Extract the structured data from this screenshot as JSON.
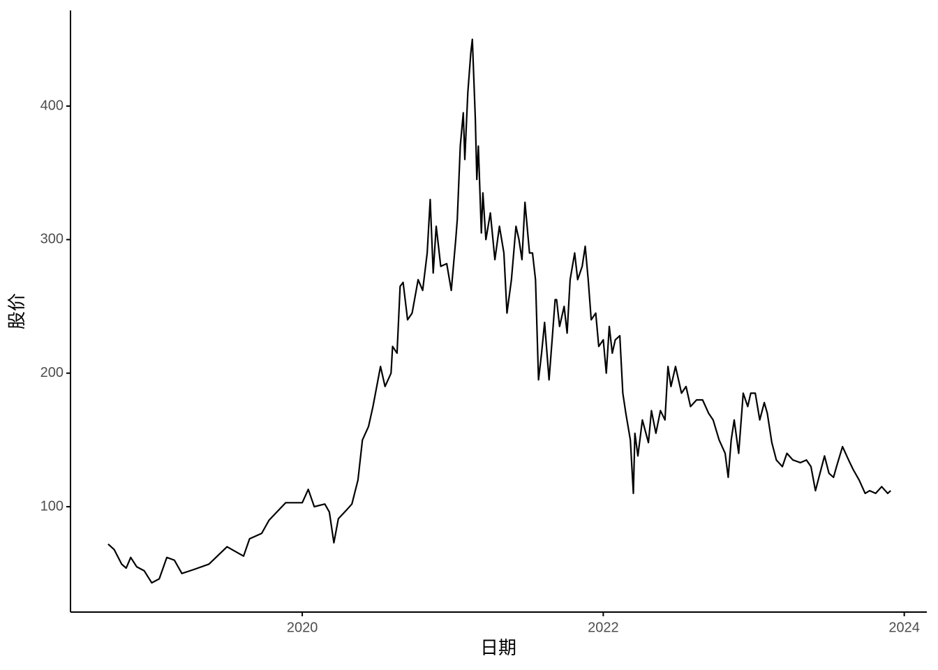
{
  "chart_data": {
    "type": "line",
    "xlabel": "日期",
    "ylabel": "股价",
    "color": "#000000",
    "x": [
      2018.71,
      2018.75,
      2018.8,
      2018.83,
      2018.86,
      2018.9,
      2018.95,
      2019.0,
      2019.05,
      2019.1,
      2019.15,
      2019.2,
      2019.28,
      2019.38,
      2019.5,
      2019.61,
      2019.65,
      2019.73,
      2019.78,
      2019.89,
      2020.0,
      2020.04,
      2020.08,
      2020.15,
      2020.18,
      2020.21,
      2020.24,
      2020.29,
      2020.33,
      2020.37,
      2020.4,
      2020.44,
      2020.47,
      2020.52,
      2020.55,
      2020.59,
      2020.6,
      2020.63,
      2020.65,
      2020.67,
      2020.7,
      2020.73,
      2020.77,
      2020.8,
      2020.83,
      2020.85,
      2020.87,
      2020.89,
      2020.9,
      2020.92,
      2020.96,
      2020.99,
      2021.02,
      2021.03,
      2021.05,
      2021.07,
      2021.08,
      2021.1,
      2021.12,
      2021.13,
      2021.15,
      2021.16,
      2021.17,
      2021.19,
      2021.2,
      2021.22,
      2021.25,
      2021.28,
      2021.31,
      2021.34,
      2021.36,
      2021.39,
      2021.42,
      2021.44,
      2021.46,
      2021.48,
      2021.51,
      2021.53,
      2021.55,
      2021.57,
      2021.59,
      2021.61,
      2021.64,
      2021.66,
      2021.68,
      2021.69,
      2021.71,
      2021.74,
      2021.76,
      2021.78,
      2021.81,
      2021.83,
      2021.86,
      2021.88,
      2021.9,
      2021.92,
      2021.95,
      2021.97,
      2022.0,
      2022.02,
      2022.04,
      2022.06,
      2022.08,
      2022.11,
      2022.13,
      2022.15,
      2022.18,
      2022.2,
      2022.21,
      2022.23,
      2022.26,
      2022.3,
      2022.32,
      2022.35,
      2022.38,
      2022.41,
      2022.43,
      2022.45,
      2022.48,
      2022.52,
      2022.55,
      2022.58,
      2022.62,
      2022.66,
      2022.7,
      2022.73,
      2022.77,
      2022.81,
      2022.83,
      2022.85,
      2022.87,
      2022.9,
      2022.93,
      2022.96,
      2022.98,
      2023.01,
      2023.04,
      2023.07,
      2023.09,
      2023.12,
      2023.15,
      2023.19,
      2023.22,
      2023.26,
      2023.31,
      2023.35,
      2023.38,
      2023.41,
      2023.44,
      2023.47,
      2023.5,
      2023.53,
      2023.55,
      2023.59,
      2023.63,
      2023.66,
      2023.7,
      2023.74,
      2023.77,
      2023.81,
      2023.85,
      2023.89,
      2023.91
    ],
    "values": [
      72,
      68,
      57,
      54,
      62,
      55,
      52,
      43,
      46,
      62,
      60,
      50,
      53,
      57,
      70,
      63,
      76,
      80,
      90,
      103,
      103,
      113,
      100,
      102,
      96,
      73,
      91,
      97,
      102,
      120,
      150,
      160,
      175,
      205,
      190,
      200,
      220,
      215,
      265,
      268,
      240,
      245,
      270,
      262,
      290,
      330,
      275,
      310,
      300,
      280,
      282,
      262,
      300,
      315,
      370,
      395,
      360,
      410,
      440,
      450,
      390,
      345,
      370,
      305,
      335,
      300,
      320,
      285,
      310,
      290,
      245,
      270,
      310,
      300,
      285,
      328,
      290,
      290,
      270,
      195,
      215,
      238,
      195,
      225,
      255,
      255,
      235,
      250,
      230,
      270,
      290,
      270,
      280,
      295,
      270,
      240,
      245,
      220,
      225,
      200,
      235,
      215,
      225,
      228,
      185,
      170,
      150,
      110,
      155,
      138,
      165,
      148,
      172,
      155,
      172,
      165,
      205,
      190,
      205,
      185,
      190,
      175,
      180,
      180,
      170,
      165,
      150,
      140,
      122,
      150,
      165,
      140,
      185,
      175,
      185,
      185,
      165,
      178,
      170,
      148,
      135,
      130,
      140,
      135,
      133,
      135,
      130,
      112,
      125,
      138,
      125,
      122,
      130,
      145,
      135,
      128,
      120,
      110,
      112,
      110,
      115,
      110,
      112
    ],
    "xlim": [
      2018.46,
      2024.15
    ],
    "xticks": [
      2020,
      2022,
      2024
    ],
    "ylim": [
      21.1,
      471.6
    ],
    "yticks": [
      100,
      200,
      300,
      400
    ]
  }
}
